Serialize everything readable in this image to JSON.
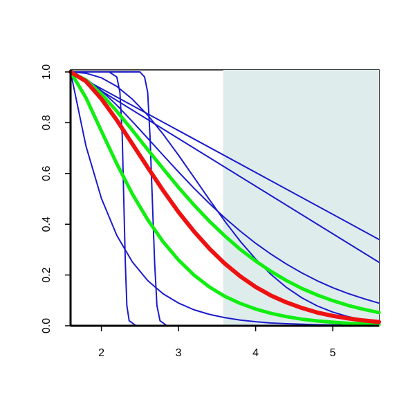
{
  "chart_data": {
    "type": "line",
    "xlim": [
      1.6,
      5.6
    ],
    "ylim": [
      0,
      1
    ],
    "xticks": [
      2,
      3,
      4,
      5
    ],
    "yticks": [
      {
        "value": 0,
        "label": "0.0"
      },
      {
        "value": 0.2,
        "label": "0.2"
      },
      {
        "value": 0.4,
        "label": "0.4"
      },
      {
        "value": 0.6,
        "label": "0.6"
      },
      {
        "value": 0.8,
        "label": "0.8"
      },
      {
        "value": 1,
        "label": "1.0"
      }
    ],
    "shaded_region": {
      "x": [
        3.58,
        5.6
      ],
      "color": "#dfecec"
    },
    "x": [
      1.6,
      1.8,
      2.0,
      2.2,
      2.4,
      2.6,
      2.8,
      3.0,
      3.2,
      3.4,
      3.6,
      3.8,
      4.0,
      4.2,
      4.4,
      4.6,
      4.8,
      5.0,
      5.2,
      5.4,
      5.6
    ],
    "series": [
      {
        "color": "#1a1acc",
        "width": 2,
        "x": [
          1.6,
          2.1,
          2.2,
          2.24,
          2.27,
          2.29,
          2.31,
          2.33,
          2.36,
          2.45,
          5.6
        ],
        "values": [
          1,
          1,
          0.98,
          0.92,
          0.75,
          0.5,
          0.25,
          0.08,
          0.02,
          0,
          0
        ]
      },
      {
        "color": "#1a1acc",
        "width": 2,
        "x": [
          1.6,
          2.5,
          2.56,
          2.6,
          2.63,
          2.66,
          2.69,
          2.72,
          2.76,
          2.85,
          5.6
        ],
        "values": [
          1,
          1,
          0.98,
          0.92,
          0.75,
          0.5,
          0.25,
          0.08,
          0.02,
          0,
          0
        ]
      },
      {
        "color": "#1a1acc",
        "width": 2,
        "values": [
          1,
          0.708,
          0.502,
          0.356,
          0.252,
          0.178,
          0.126,
          0.0895,
          0.063,
          0.045,
          0.032,
          0.0225,
          0.016,
          0.011,
          0.008,
          0.006,
          0.004,
          0.003,
          0.002,
          0.001,
          0.001
        ]
      },
      {
        "color": "#1a1acc",
        "width": 2,
        "x": [
          1.6,
          5.6
        ],
        "values": [
          1,
          0.34
        ]
      },
      {
        "color": "#1a1acc",
        "width": 2,
        "x": [
          1.6,
          5.6
        ],
        "values": [
          1,
          0.25
        ]
      },
      {
        "color": "#1a1acc",
        "width": 2,
        "values": [
          1,
          0.973,
          0.926,
          0.869,
          0.805,
          0.739,
          0.672,
          0.606,
          0.542,
          0.482,
          0.425,
          0.373,
          0.325,
          0.282,
          0.243,
          0.208,
          0.177,
          0.15,
          0.127,
          0.107,
          0.089
        ]
      },
      {
        "color": "#1a1acc",
        "width": 2,
        "values": [
          1,
          0.995,
          0.977,
          0.943,
          0.893,
          0.83,
          0.755,
          0.672,
          0.585,
          0.497,
          0.412,
          0.333,
          0.263,
          0.202,
          0.151,
          0.11,
          0.078,
          0.054,
          0.036,
          0.023,
          0.015
        ]
      },
      {
        "color": "#11ee11",
        "width": 5,
        "values": [
          1,
          0.968,
          0.913,
          0.845,
          0.771,
          0.694,
          0.619,
          0.545,
          0.476,
          0.412,
          0.354,
          0.301,
          0.255,
          0.214,
          0.178,
          0.147,
          0.121,
          0.099,
          0.08,
          0.065,
          0.052
        ]
      },
      {
        "color": "#11ee11",
        "width": 5,
        "values": [
          1,
          0.898,
          0.767,
          0.638,
          0.52,
          0.418,
          0.331,
          0.259,
          0.2,
          0.153,
          0.116,
          0.088,
          0.066,
          0.049,
          0.036,
          0.026,
          0.019,
          0.014,
          0.01,
          0.007,
          0.005
        ]
      },
      {
        "color": "#ee1111",
        "width": 6,
        "values": [
          1,
          0.963,
          0.894,
          0.81,
          0.717,
          0.624,
          0.533,
          0.448,
          0.372,
          0.304,
          0.245,
          0.195,
          0.153,
          0.119,
          0.092,
          0.07,
          0.052,
          0.039,
          0.029,
          0.021,
          0.015
        ]
      }
    ]
  }
}
